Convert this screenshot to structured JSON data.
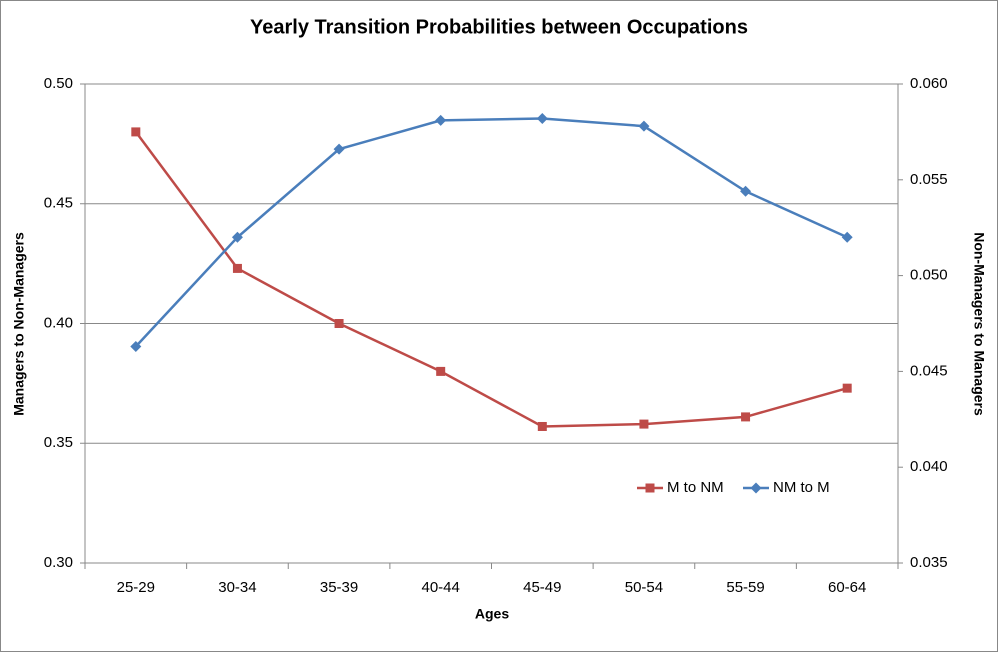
{
  "chart_data": {
    "type": "line",
    "title": "Yearly Transition Probabilities between Occupations",
    "x_label": "Ages",
    "y_label": "Managers to Non-Managers",
    "y2_label": "Non-Managers to Managers",
    "categories": [
      "25-29",
      "30-34",
      "35-39",
      "40-44",
      "45-49",
      "50-54",
      "55-59",
      "60-64"
    ],
    "series": [
      {
        "name": "M to NM",
        "color": "#be4b48",
        "marker": "square",
        "values": [
          0.48,
          0.423,
          0.4,
          0.38,
          0.357,
          0.358,
          0.361,
          0.373
        ]
      },
      {
        "name": "NM to M",
        "color": "#4a7ebb",
        "marker": "diamond",
        "axis": "y2",
        "values": [
          0.0463,
          0.052,
          0.0566,
          0.0581,
          0.0582,
          0.0578,
          0.0544,
          0.052
        ]
      }
    ],
    "ylim": [
      0.3,
      0.5
    ],
    "yticks": [
      {
        "value": 0.3,
        "label": "0.30"
      },
      {
        "value": 0.35,
        "label": "0.35"
      },
      {
        "value": 0.4,
        "label": "0.40"
      },
      {
        "value": 0.45,
        "label": "0.45"
      },
      {
        "value": 0.5,
        "label": "0.50"
      }
    ],
    "y2lim": [
      0.035,
      0.06
    ],
    "y2ticks": [
      {
        "value": 0.035,
        "label": "0.035"
      },
      {
        "value": 0.04,
        "label": "0.040"
      },
      {
        "value": 0.045,
        "label": "0.045"
      },
      {
        "value": 0.05,
        "label": "0.050"
      },
      {
        "value": 0.055,
        "label": "0.055"
      },
      {
        "value": 0.06,
        "label": "0.060"
      }
    ],
    "grid": true,
    "legend": "lower right"
  }
}
